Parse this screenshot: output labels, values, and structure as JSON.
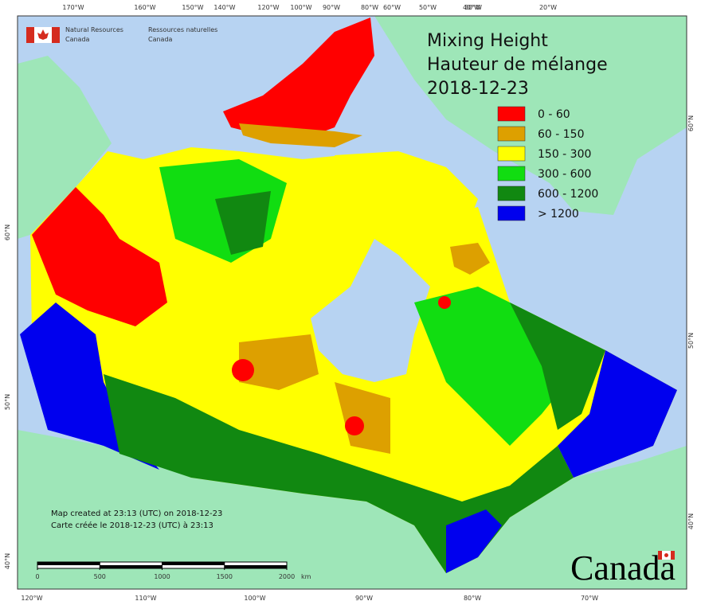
{
  "org_en": [
    "Natural Resources",
    "Canada"
  ],
  "org_fr": [
    "Ressources naturelles",
    "Canada"
  ],
  "title": [
    "Mixing Height",
    "Hauteur de mélange",
    "2018-12-23"
  ],
  "legend": [
    {
      "label": "0 - 60",
      "color": "#ff0000"
    },
    {
      "label": "60 - 150",
      "color": "#dda000"
    },
    {
      "label": "150 - 300",
      "color": "#ffff00"
    },
    {
      "label": "300 - 600",
      "color": "#11dd11"
    },
    {
      "label": "600 - 1200",
      "color": "#118811"
    },
    {
      "label": "> 1200",
      "color": "#0000ee"
    }
  ],
  "top_labels": [
    "170°W",
    "160°W",
    "150°W",
    "140°W",
    "120°W",
    "100°W",
    "90°W",
    "80°W",
    "60°W",
    "50°W",
    "40°W",
    "30°W",
    "20°W"
  ],
  "bottom_labels": [
    "120°W",
    "110°W",
    "100°W",
    "90°W",
    "80°W",
    "70°W"
  ],
  "left_labels": [
    "60°N",
    "50°N",
    "40°N"
  ],
  "right_labels": [
    "60°N",
    "50°N",
    "40°N"
  ],
  "credits": [
    "Map created at 23:13 (UTC) on 2018-12-23",
    "Carte créée le 2018-12-23 (UTC) à 23:13"
  ],
  "scale_bar": {
    "ticks": [
      0,
      500,
      1000,
      1500,
      2000
    ],
    "unit": "km"
  },
  "wordmark": "Canada"
}
